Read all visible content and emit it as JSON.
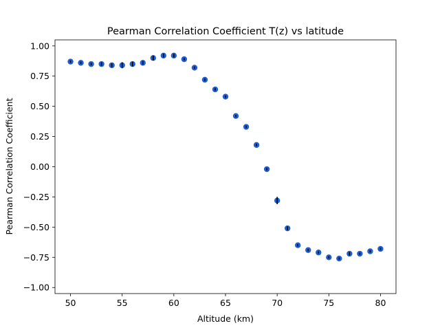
{
  "chart_data": {
    "type": "scatter",
    "title": "Pearman Correlation Coefficient T(z) vs latitude",
    "xlabel": "Altitude (km)",
    "ylabel": "Pearman Correlation Coefficient",
    "xlim": [
      48.5,
      81.5
    ],
    "ylim": [
      -1.05,
      1.05
    ],
    "xticks": [
      50,
      55,
      60,
      65,
      70,
      75,
      80
    ],
    "yticks": [
      1.0,
      0.75,
      0.5,
      0.25,
      0.0,
      -0.25,
      -0.5,
      -0.75,
      -1.0
    ],
    "xtick_labels": [
      "50",
      "55",
      "60",
      "65",
      "70",
      "75",
      "80"
    ],
    "ytick_labels": [
      "1.00",
      "0.75",
      "0.50",
      "0.25",
      "0.00",
      "−0.25",
      "−0.50",
      "−0.75",
      "−1.00"
    ],
    "grid": false,
    "marker_color": "#1f5fd0",
    "errorbar_color": "#000000",
    "series": [
      {
        "x": [
          50,
          51,
          52,
          53,
          54,
          55,
          56,
          57,
          58,
          59,
          60,
          61,
          62,
          63,
          64,
          65,
          66,
          67,
          68,
          69,
          70,
          71,
          72,
          73,
          74,
          75,
          76,
          77,
          78,
          79,
          80
        ],
        "y": [
          0.87,
          0.86,
          0.85,
          0.85,
          0.84,
          0.84,
          0.85,
          0.86,
          0.9,
          0.92,
          0.92,
          0.89,
          0.82,
          0.72,
          0.64,
          0.58,
          0.42,
          0.33,
          0.18,
          -0.02,
          -0.28,
          -0.51,
          -0.65,
          -0.69,
          -0.71,
          -0.75,
          -0.76,
          -0.72,
          -0.72,
          -0.7,
          -0.68
        ],
        "yerr": [
          0.01,
          0.01,
          0.01,
          0.015,
          0.015,
          0.025,
          0.02,
          0.015,
          0.02,
          0.015,
          0.015,
          0.01,
          0.01,
          0.01,
          0.01,
          0.01,
          0.01,
          0.01,
          0.01,
          0.01,
          0.03,
          0.015,
          0.01,
          0.01,
          0.01,
          0.01,
          0.01,
          0.015,
          0.01,
          0.01,
          0.01
        ]
      }
    ]
  }
}
